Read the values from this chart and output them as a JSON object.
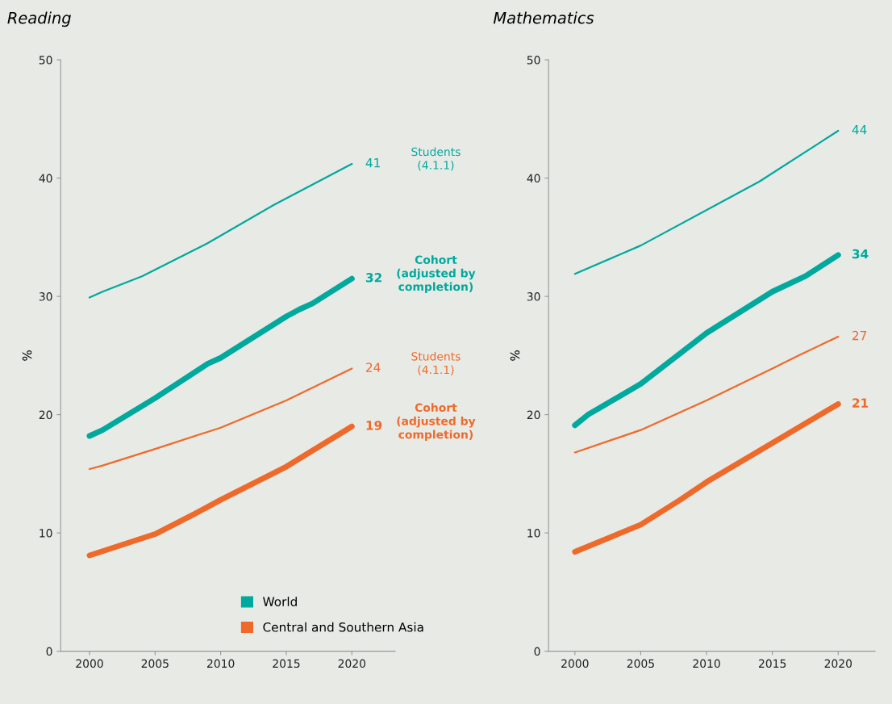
{
  "chart_data": [
    {
      "type": "line",
      "title": "Reading",
      "ylabel": "%",
      "xlim": [
        1997.8,
        2023.3
      ],
      "xticks": [
        2000,
        2005,
        2010,
        2015,
        2020
      ],
      "ylim": [
        0,
        50
      ],
      "yticks": [
        0,
        10,
        20,
        30,
        40,
        50
      ],
      "grid": false,
      "legend": "bottom right",
      "series": [
        {
          "name": "World",
          "color": "#00a99d",
          "x": [
            2000,
            2001,
            2004,
            2009,
            2014,
            2020
          ],
          "values": [
            29.9,
            30.4,
            31.7,
            34.5,
            37.7,
            41.2
          ],
          "value_labels": [
            null,
            null,
            null,
            null,
            null,
            "41"
          ]
        },
        {
          "color": "#00a99d",
          "x": [
            2000,
            2001,
            2005,
            2009,
            2010,
            2015,
            2016,
            2017,
            2020
          ],
          "values": [
            18.2,
            18.7,
            21.4,
            24.3,
            24.8,
            28.3,
            28.9,
            29.4,
            31.5
          ],
          "value_labels": [
            null,
            null,
            null,
            null,
            null,
            null,
            null,
            null,
            "32"
          ]
        },
        {
          "name": "Central and Southern Asia",
          "color": "#ee6a2a",
          "x": [
            2000,
            2001,
            2005,
            2010,
            2015,
            2020
          ],
          "values": [
            15.4,
            15.7,
            17.1,
            18.9,
            21.2,
            23.9
          ],
          "value_labels": [
            null,
            null,
            null,
            null,
            null,
            "24"
          ]
        },
        {
          "color": "#ee6a2a",
          "x": [
            2000,
            2005,
            2008,
            2010,
            2015,
            2020
          ],
          "values": [
            8.1,
            9.9,
            11.6,
            12.8,
            15.6,
            19.0
          ],
          "value_labels": [
            null,
            null,
            null,
            null,
            null,
            "19"
          ]
        }
      ],
      "annotations": [
        "Students\n(4.1.1)",
        "Cohort\n(adjusted by\ncompletion)",
        "Students\n(4.1.1)",
        "Cohort\n(adjusted by\ncompletion)"
      ]
    },
    {
      "type": "line",
      "title": "Mathematics",
      "ylabel": "%",
      "xlim": [
        1998,
        2022.8
      ],
      "xticks": [
        2000,
        2005,
        2010,
        2015,
        2020
      ],
      "ylim": [
        0,
        50
      ],
      "yticks": [
        0,
        10,
        20,
        30,
        40,
        50
      ],
      "grid": false,
      "series": [
        {
          "color": "#00a99d",
          "x": [
            2000,
            2005,
            2014,
            2020
          ],
          "values": [
            31.9,
            34.3,
            39.7,
            44.0
          ],
          "value_labels": [
            null,
            null,
            null,
            "44"
          ]
        },
        {
          "color": "#00a99d",
          "x": [
            2000,
            2001,
            2005,
            2010,
            2015,
            2017.5,
            2020
          ],
          "values": [
            19.1,
            20.0,
            22.6,
            26.9,
            30.4,
            31.7,
            33.5
          ],
          "value_labels": [
            null,
            null,
            null,
            null,
            null,
            null,
            "34"
          ]
        },
        {
          "color": "#ee6a2a",
          "x": [
            2000,
            2005,
            2010,
            2015,
            2017,
            2020
          ],
          "values": [
            16.8,
            18.7,
            21.2,
            23.9,
            25.0,
            26.6
          ],
          "value_labels": [
            null,
            null,
            null,
            null,
            null,
            "27"
          ]
        },
        {
          "color": "#ee6a2a",
          "x": [
            2000,
            2005,
            2008,
            2010,
            2015,
            2020
          ],
          "values": [
            8.4,
            10.7,
            12.8,
            14.3,
            17.6,
            20.9
          ],
          "value_labels": [
            null,
            null,
            null,
            null,
            null,
            "21"
          ]
        }
      ]
    }
  ]
}
